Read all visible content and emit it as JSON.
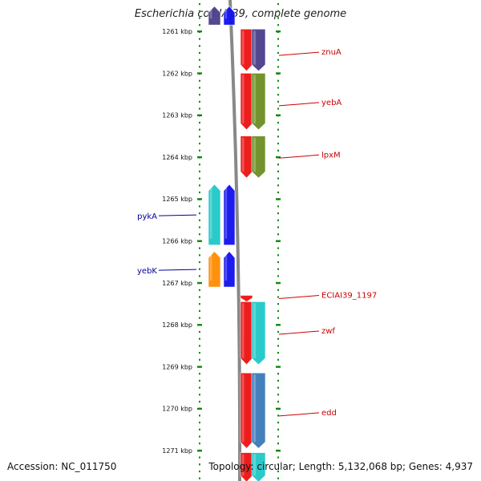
{
  "title": "Escherichia coli IAI39, complete genome",
  "footer": {
    "accession": "Accession: NC_011750",
    "topology": "Topology: circular; Length: 5,132,068 bp; Genes: 4,937"
  },
  "colors": {
    "tick": "#118811",
    "backbone": "#888888",
    "right_label": "#cc0000",
    "left_label": "#000099"
  },
  "ticks": [
    {
      "kbp": 1261,
      "label": "1261 kbp"
    },
    {
      "kbp": 1262,
      "label": "1262 kbp"
    },
    {
      "kbp": 1263,
      "label": "1263 kbp"
    },
    {
      "kbp": 1264,
      "label": "1264 kbp"
    },
    {
      "kbp": 1265,
      "label": "1265 kbp"
    },
    {
      "kbp": 1266,
      "label": "1266 kbp"
    },
    {
      "kbp": 1267,
      "label": "1267 kbp"
    },
    {
      "kbp": 1268,
      "label": "1268 kbp"
    },
    {
      "kbp": 1269,
      "label": "1269 kbp"
    },
    {
      "kbp": 1270,
      "label": "1270 kbp"
    },
    {
      "kbp": 1271,
      "label": "1271 kbp"
    }
  ],
  "genes": [
    {
      "name": "",
      "strand": "-",
      "lane": "left-a",
      "start": 1260.4,
      "end": 1260.85,
      "color": "#4a3f8a",
      "labeled": false
    },
    {
      "name": "",
      "strand": "-",
      "lane": "left-b",
      "start": 1260.4,
      "end": 1260.85,
      "color": "#1010ee",
      "labeled": false
    },
    {
      "name": "znuA",
      "strand": "+",
      "lane": "right-a",
      "start": 1260.95,
      "end": 1261.95,
      "color": "#ee1111",
      "labeled": true,
      "label_kbp": 1261.5
    },
    {
      "name": "",
      "strand": "+",
      "lane": "right-b",
      "start": 1260.95,
      "end": 1261.95,
      "color": "#4a3f8a",
      "labeled": false
    },
    {
      "name": "yebA",
      "strand": "+",
      "lane": "right-a",
      "start": 1262.0,
      "end": 1263.35,
      "color": "#ee1111",
      "labeled": true,
      "label_kbp": 1262.7
    },
    {
      "name": "",
      "strand": "+",
      "lane": "right-b",
      "start": 1262.0,
      "end": 1263.35,
      "color": "#6b8e23",
      "labeled": false
    },
    {
      "name": "lpxM",
      "strand": "+",
      "lane": "right-a",
      "start": 1263.5,
      "end": 1264.5,
      "color": "#ee1111",
      "labeled": true,
      "label_kbp": 1263.95
    },
    {
      "name": "",
      "strand": "+",
      "lane": "right-b",
      "start": 1263.5,
      "end": 1264.5,
      "color": "#6b8e23",
      "labeled": false
    },
    {
      "name": "pykA",
      "strand": "-",
      "lane": "left-a",
      "start": 1264.65,
      "end": 1266.1,
      "color": "#20c8c8",
      "labeled": true,
      "label_kbp": 1265.4
    },
    {
      "name": "",
      "strand": "-",
      "lane": "left-b",
      "start": 1264.65,
      "end": 1266.1,
      "color": "#1010ee",
      "labeled": false
    },
    {
      "name": "yebK",
      "strand": "-",
      "lane": "left-a",
      "start": 1266.25,
      "end": 1267.1,
      "color": "#ff8c00",
      "labeled": true,
      "label_kbp": 1266.7
    },
    {
      "name": "",
      "strand": "-",
      "lane": "left-b",
      "start": 1266.25,
      "end": 1267.1,
      "color": "#1010ee",
      "labeled": false
    },
    {
      "name": "ECIAI39_1197",
      "strand": "+",
      "lane": "right-a",
      "start": 1267.3,
      "end": 1267.45,
      "color": "#ee1111",
      "labeled": true,
      "label_kbp": 1267.3
    },
    {
      "name": "zwf",
      "strand": "+",
      "lane": "right-a",
      "start": 1267.45,
      "end": 1268.95,
      "color": "#ee1111",
      "labeled": true,
      "label_kbp": 1268.15
    },
    {
      "name": "",
      "strand": "+",
      "lane": "right-b",
      "start": 1267.45,
      "end": 1268.95,
      "color": "#20c8c8",
      "labeled": false
    },
    {
      "name": "edd",
      "strand": "+",
      "lane": "right-a",
      "start": 1269.15,
      "end": 1270.95,
      "color": "#ee1111",
      "labeled": true,
      "label_kbp": 1270.1
    },
    {
      "name": "",
      "strand": "+",
      "lane": "right-b",
      "start": 1269.15,
      "end": 1270.95,
      "color": "#3a7ab8",
      "labeled": false
    },
    {
      "name": "",
      "strand": "+",
      "lane": "right-a",
      "start": 1271.05,
      "end": 1271.75,
      "color": "#ee1111",
      "labeled": false
    },
    {
      "name": "",
      "strand": "+",
      "lane": "right-b",
      "start": 1271.05,
      "end": 1271.75,
      "color": "#20c8c8",
      "labeled": false
    }
  ]
}
